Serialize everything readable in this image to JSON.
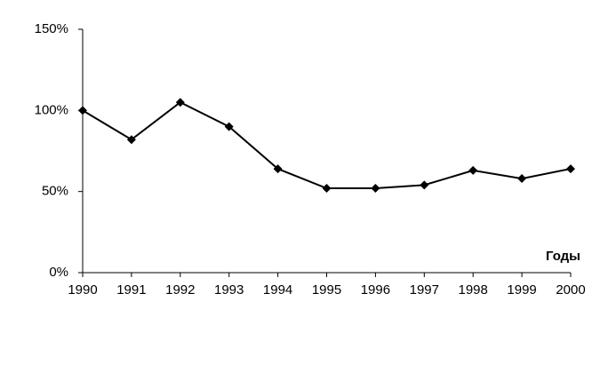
{
  "chart_data": {
    "type": "line",
    "x_label": "Годы",
    "x": [
      1990,
      1991,
      1992,
      1993,
      1994,
      1995,
      1996,
      1997,
      1998,
      1999,
      2000
    ],
    "xlim": [
      1990,
      2000
    ],
    "xticks": [
      1990,
      1991,
      1992,
      1993,
      1994,
      1995,
      1996,
      1997,
      1998,
      1999,
      2000
    ],
    "series": [
      {
        "color": "#000000",
        "values": [
          100,
          82,
          105,
          90,
          64,
          52,
          52,
          54,
          63,
          58,
          64
        ]
      }
    ],
    "ylim": [
      0,
      150
    ],
    "yticks": [
      {
        "value": 0,
        "label": "0%"
      },
      {
        "value": 50,
        "label": "50%"
      },
      {
        "value": 100,
        "label": "100%"
      },
      {
        "value": 150,
        "label": "150%"
      }
    ],
    "grid": false
  }
}
